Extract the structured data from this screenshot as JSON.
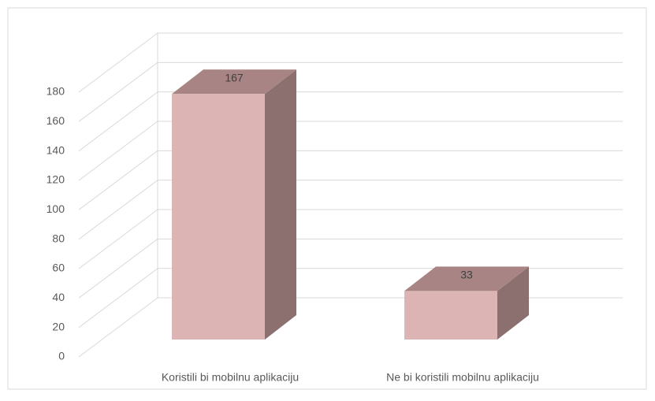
{
  "chart_data": {
    "type": "bar3d",
    "categories": [
      "Koristili bi mobilnu aplikaciju",
      "Ne bi koristili mobilnu aplikaciju"
    ],
    "values": [
      167,
      33
    ],
    "color": "#dcb4b4",
    "ylim": [
      0,
      180
    ],
    "yticks": [
      0,
      20,
      40,
      60,
      80,
      100,
      120,
      140,
      160,
      180
    ],
    "grid": true
  }
}
